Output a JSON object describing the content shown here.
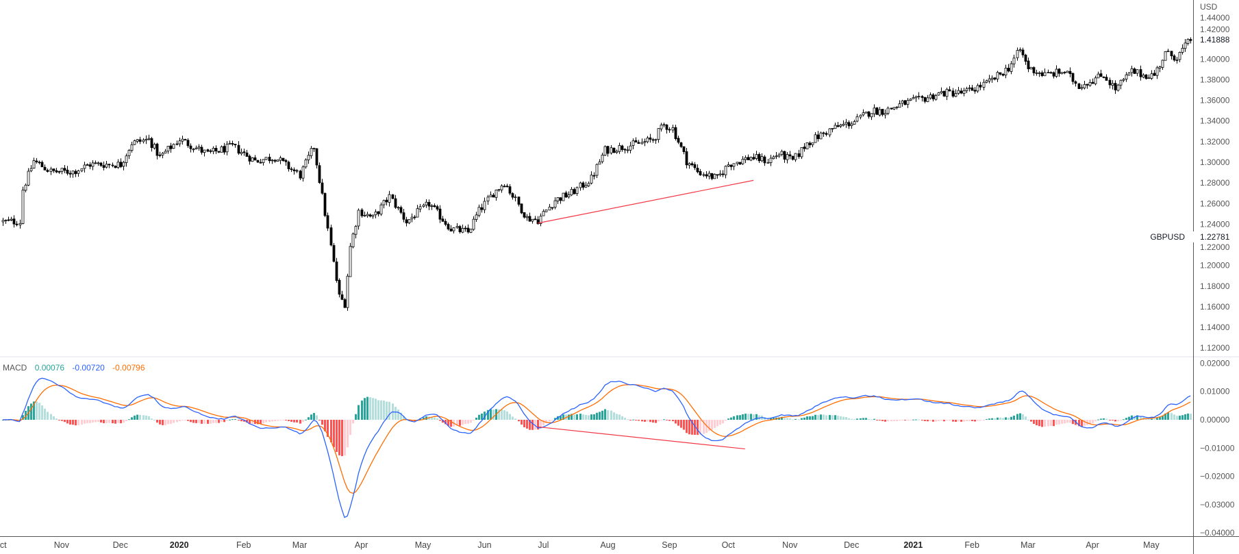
{
  "chart_data": [
    {
      "type": "candlestick",
      "title": "GBPUSD",
      "currency_label": "USD",
      "symbol_label": "GBPUSD",
      "symbol_price_label": "1.22781",
      "last_price_label": "1.41888",
      "ylim": [
        1.11,
        1.45
      ],
      "yticks": [
        "1.44000",
        "1.42000",
        "1.40000",
        "1.38000",
        "1.36000",
        "1.34000",
        "1.32000",
        "1.30000",
        "1.28000",
        "1.26000",
        "1.24000",
        "1.22000",
        "1.20000",
        "1.18000",
        "1.16000",
        "1.14000",
        "1.12000"
      ],
      "trading_days": 425,
      "anchors_day_close": [
        [
          0,
          1.2425
        ],
        [
          6,
          1.2425
        ],
        [
          7,
          1.2737
        ],
        [
          11,
          1.3014
        ],
        [
          17,
          1.291
        ],
        [
          25,
          1.291
        ],
        [
          31,
          1.298
        ],
        [
          42,
          1.298
        ],
        [
          46,
          1.3187
        ],
        [
          52,
          1.3222
        ],
        [
          56,
          1.3049
        ],
        [
          63,
          1.3222
        ],
        [
          73,
          1.3083
        ],
        [
          82,
          1.3153
        ],
        [
          90,
          1.3014
        ],
        [
          97,
          1.3049
        ],
        [
          106,
          1.2875
        ],
        [
          111,
          1.3153
        ],
        [
          114,
          1.2668
        ],
        [
          117,
          1.2182
        ],
        [
          120,
          1.1697
        ],
        [
          122,
          1.1632
        ],
        [
          124,
          1.2182
        ],
        [
          127,
          1.2529
        ],
        [
          132,
          1.246
        ],
        [
          138,
          1.2668
        ],
        [
          144,
          1.2425
        ],
        [
          152,
          1.2598
        ],
        [
          160,
          1.2356
        ],
        [
          166,
          1.2321
        ],
        [
          170,
          1.2529
        ],
        [
          175,
          1.2702
        ],
        [
          179,
          1.2806
        ],
        [
          183,
          1.2633
        ],
        [
          187,
          1.246
        ],
        [
          191,
          1.244
        ],
        [
          197,
          1.2633
        ],
        [
          203,
          1.2702
        ],
        [
          210,
          1.2841
        ],
        [
          215,
          1.3118
        ],
        [
          222,
          1.3153
        ],
        [
          228,
          1.3187
        ],
        [
          232,
          1.3222
        ],
        [
          236,
          1.336
        ],
        [
          239,
          1.3326
        ],
        [
          244,
          1.3014
        ],
        [
          248,
          1.291
        ],
        [
          255,
          1.2841
        ],
        [
          259,
          1.298
        ],
        [
          267,
          1.3049
        ],
        [
          273,
          1.3014
        ],
        [
          277,
          1.3083
        ],
        [
          282,
          1.3014
        ],
        [
          287,
          1.3187
        ],
        [
          296,
          1.3326
        ],
        [
          304,
          1.3395
        ],
        [
          310,
          1.3499
        ],
        [
          315,
          1.3499
        ],
        [
          321,
          1.3568
        ],
        [
          327,
          1.3603
        ],
        [
          335,
          1.3672
        ],
        [
          343,
          1.3672
        ],
        [
          352,
          1.3776
        ],
        [
          359,
          1.3915
        ],
        [
          363,
          1.4088
        ],
        [
          366,
          1.3915
        ],
        [
          372,
          1.3846
        ],
        [
          379,
          1.388
        ],
        [
          384,
          1.3742
        ],
        [
          390,
          1.3811
        ],
        [
          393,
          1.3846
        ],
        [
          397,
          1.3707
        ],
        [
          403,
          1.388
        ],
        [
          407,
          1.3846
        ],
        [
          411,
          1.3846
        ],
        [
          415,
          1.4054
        ],
        [
          419,
          1.4019
        ],
        [
          424,
          1.4189
        ]
      ],
      "trendline": {
        "from": [
          191,
          1.241
        ],
        "to": [
          268,
          1.2825
        ],
        "color": "#f23645"
      }
    },
    {
      "type": "macd",
      "title": "MACD",
      "legend_values": {
        "histogram": "0.00076",
        "macd": "-0.00720",
        "signal": "-0.00796"
      },
      "params": [
        12,
        26,
        9
      ],
      "ylim": [
        -0.0412,
        0.0222
      ],
      "yticks": [
        "0.02000",
        "0.01000",
        "0.00000",
        "−0.01000",
        "−0.02000",
        "−0.03000",
        "−0.04000"
      ],
      "ytick_values": [
        0.02,
        0.01,
        0,
        -0.01,
        -0.02,
        -0.03,
        -0.04
      ],
      "colors": {
        "macd": "#2962ff",
        "signal": "#ff6d00",
        "hist_up_strong": "#26a69a",
        "hist_up_weak": "#b2dfdb",
        "hist_down_strong": "#ff5252",
        "hist_down_weak": "#ffcdd2"
      },
      "trendline": {
        "from": [
          191,
          -0.0025
        ],
        "to": [
          265,
          -0.0103
        ],
        "color": "#f23645"
      }
    }
  ],
  "x_axis": {
    "labels": [
      {
        "day": -1,
        "text": "Oct",
        "year": false
      },
      {
        "day": 21,
        "text": "Nov",
        "year": false
      },
      {
        "day": 42,
        "text": "Dec",
        "year": false
      },
      {
        "day": 63,
        "text": "2020",
        "year": true
      },
      {
        "day": 86,
        "text": "Feb",
        "year": false
      },
      {
        "day": 106,
        "text": "Mar",
        "year": false
      },
      {
        "day": 128,
        "text": "Apr",
        "year": false
      },
      {
        "day": 150,
        "text": "May",
        "year": false
      },
      {
        "day": 172,
        "text": "Jun",
        "year": false
      },
      {
        "day": 193,
        "text": "Jul",
        "year": false
      },
      {
        "day": 216,
        "text": "Aug",
        "year": false
      },
      {
        "day": 238,
        "text": "Sep",
        "year": false
      },
      {
        "day": 259,
        "text": "Oct",
        "year": false
      },
      {
        "day": 281,
        "text": "Nov",
        "year": false
      },
      {
        "day": 303,
        "text": "Dec",
        "year": false
      },
      {
        "day": 325,
        "text": "2021",
        "year": true
      },
      {
        "day": 346,
        "text": "Feb",
        "year": false
      },
      {
        "day": 366,
        "text": "Mar",
        "year": false
      },
      {
        "day": 389,
        "text": "Apr",
        "year": false
      },
      {
        "day": 410,
        "text": "May",
        "year": false
      }
    ]
  }
}
